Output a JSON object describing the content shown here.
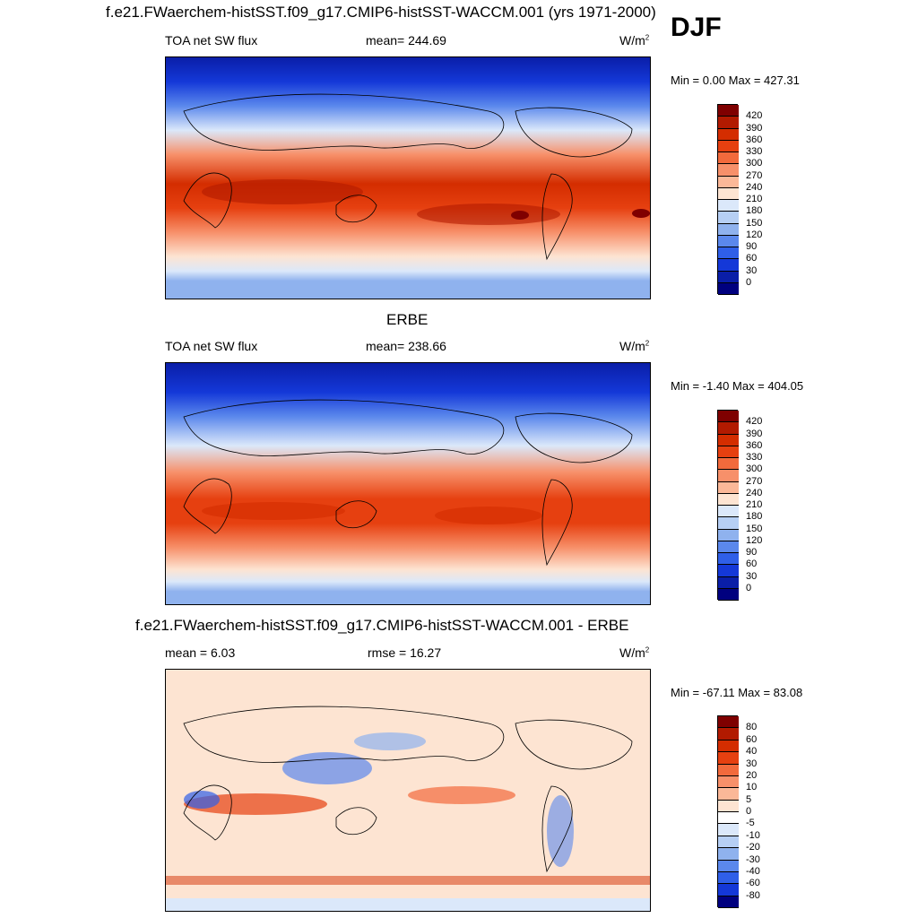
{
  "header": {
    "title": "f.e21.FWaerchem-histSST.f09_g17.CMIP6-histSST-WACCM.001 (yrs 1971-2000)",
    "season": "DJF"
  },
  "panels": [
    {
      "id": "model",
      "title": "",
      "left_label": "TOA net SW flux",
      "center_label": "mean= 244.69",
      "units": "W/m",
      "units_sup": "2",
      "minmax": "Min =   0.00 Max = 427.31",
      "colorbar_ticks": [
        "420",
        "390",
        "360",
        "330",
        "300",
        "270",
        "240",
        "210",
        "180",
        "150",
        "120",
        "90",
        "60",
        "30",
        "0"
      ]
    },
    {
      "id": "obs",
      "title": "ERBE",
      "left_label": "TOA net SW flux",
      "center_label": "mean= 238.66",
      "units": "W/m",
      "units_sup": "2",
      "minmax": "Min =  -1.40 Max = 404.05",
      "colorbar_ticks": [
        "420",
        "390",
        "360",
        "330",
        "300",
        "270",
        "240",
        "210",
        "180",
        "150",
        "120",
        "90",
        "60",
        "30",
        "0"
      ]
    },
    {
      "id": "diff",
      "title": "f.e21.FWaerchem-histSST.f09_g17.CMIP6-histSST-WACCM.001 - ERBE",
      "left_label": "mean =   6.03",
      "center_label": "rmse =  16.27",
      "units": "W/m",
      "units_sup": "2",
      "minmax": "Min = -67.11 Max =  83.08",
      "colorbar_ticks": [
        "80",
        "60",
        "40",
        "30",
        "20",
        "10",
        "5",
        "0",
        "-5",
        "-10",
        "-20",
        "-30",
        "-40",
        "-60",
        "-80"
      ]
    }
  ],
  "colors": {
    "abs_scale": [
      "#7f0000",
      "#b21a00",
      "#d42d00",
      "#e64010",
      "#f26a3c",
      "#f7906a",
      "#fbb898",
      "#fde4d2",
      "#dbe8fa",
      "#b6cff4",
      "#8fb2ee",
      "#5b88ec",
      "#2f5fe8",
      "#1438d8",
      "#0a1ea8",
      "#00007f"
    ],
    "diff_scale": [
      "#7f0000",
      "#b21a00",
      "#d42d00",
      "#e64010",
      "#f26a3c",
      "#f7906a",
      "#fbb898",
      "#fde4d2",
      "#ffffff",
      "#dbe8fa",
      "#b6cff4",
      "#8fb2ee",
      "#5b88ec",
      "#2f5fe8",
      "#1438d8",
      "#00007f"
    ]
  }
}
